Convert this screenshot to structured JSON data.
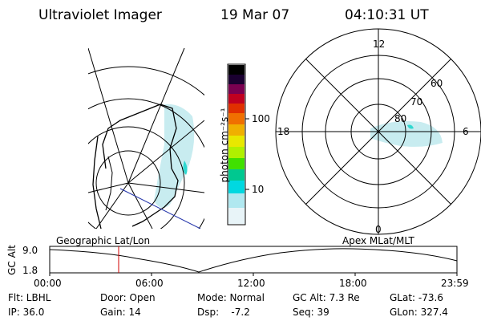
{
  "header": {
    "instrument": "Ultraviolet Imager",
    "date": "19 Mar 07",
    "time": "04:10:31 UT"
  },
  "colorbar": {
    "unit_label": "photon cm⁻²s⁻¹",
    "tick_100": "100",
    "tick_10": "10",
    "colors": [
      "#000000",
      "#1a0030",
      "#7a0050",
      "#c00020",
      "#e03000",
      "#f07000",
      "#f0b000",
      "#e8e800",
      "#b0f000",
      "#40e000",
      "#00c890",
      "#00d8e0",
      "#b0e8f0",
      "#e8f4f8"
    ]
  },
  "polar_plot": {
    "label_12": "12",
    "label_6": "6",
    "label_18": "18",
    "label_0": "0",
    "lat_60": "60",
    "lat_70": "70",
    "lat_80": "80"
  },
  "timeline": {
    "left_title": "Geographic Lat/Lon",
    "right_title": "Apex MLat/MLT",
    "axis_label": "GC Alt",
    "y_top": "9.0",
    "y_bottom": "1.8",
    "x_ticks": [
      "00:00",
      "06:00",
      "12:00",
      "18:00",
      "23:59"
    ],
    "marker_color": "#d00000"
  },
  "info": {
    "flt": "Flt: LBHL",
    "ip": "IP: 36.0",
    "door": "Door: Open",
    "gain": "Gain: 14",
    "mode": "Mode: Normal",
    "dsp": "Dsp:    -7.2",
    "gcalt": "GC Alt: 7.3 Re",
    "seq": "Seq: 39",
    "glat": "GLat: -73.6",
    "glon": "GLon: 327.4"
  }
}
